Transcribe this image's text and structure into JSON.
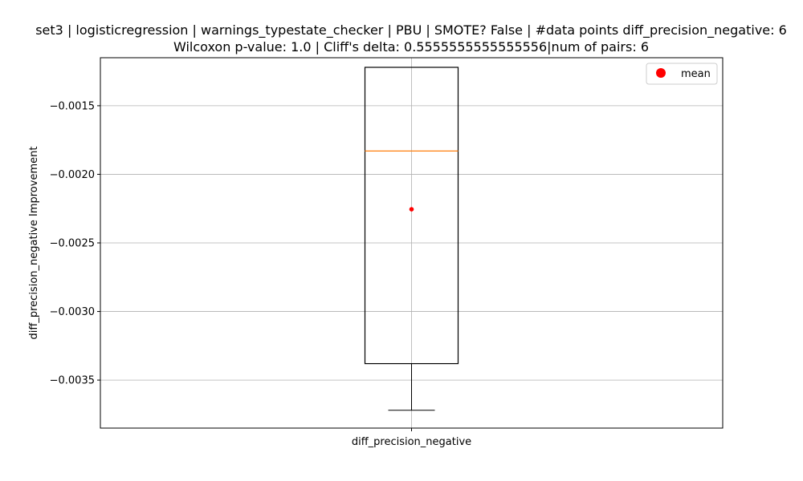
{
  "chart_data": {
    "type": "box",
    "title_line1": "set3 | logisticregression | warnings_typestate_checker | PBU | SMOTE? False | #data points diff_precision_negative: 6",
    "title_line2": "Wilcoxon p-value: 1.0 | Cliff's delta: 0.5555555555555556|num of pairs: 6",
    "xlabel": "",
    "ylabel": "diff_precision_negative Improvement",
    "categories": [
      "diff_precision_negative"
    ],
    "box": {
      "whisker_high": -0.00122,
      "q3": -0.00122,
      "median": -0.00183,
      "mean": -0.002255,
      "q1": -0.00338,
      "whisker_low": -0.00372
    },
    "ylim": [
      -0.00385,
      -0.00115
    ],
    "yticks": [
      -0.0015,
      -0.002,
      -0.0025,
      -0.003,
      -0.0035
    ],
    "ytick_labels": [
      "−0.0015",
      "−0.0020",
      "−0.0025",
      "−0.0030",
      "−0.0035"
    ],
    "grid": true,
    "legend": {
      "position": "top-right",
      "entries": [
        {
          "label": "mean",
          "color": "#ff0000",
          "marker": "circle"
        }
      ]
    },
    "colors": {
      "box": "#000000",
      "median": "#ff7f0e",
      "mean": "#ff0000",
      "grid": "#b0b0b0"
    }
  }
}
